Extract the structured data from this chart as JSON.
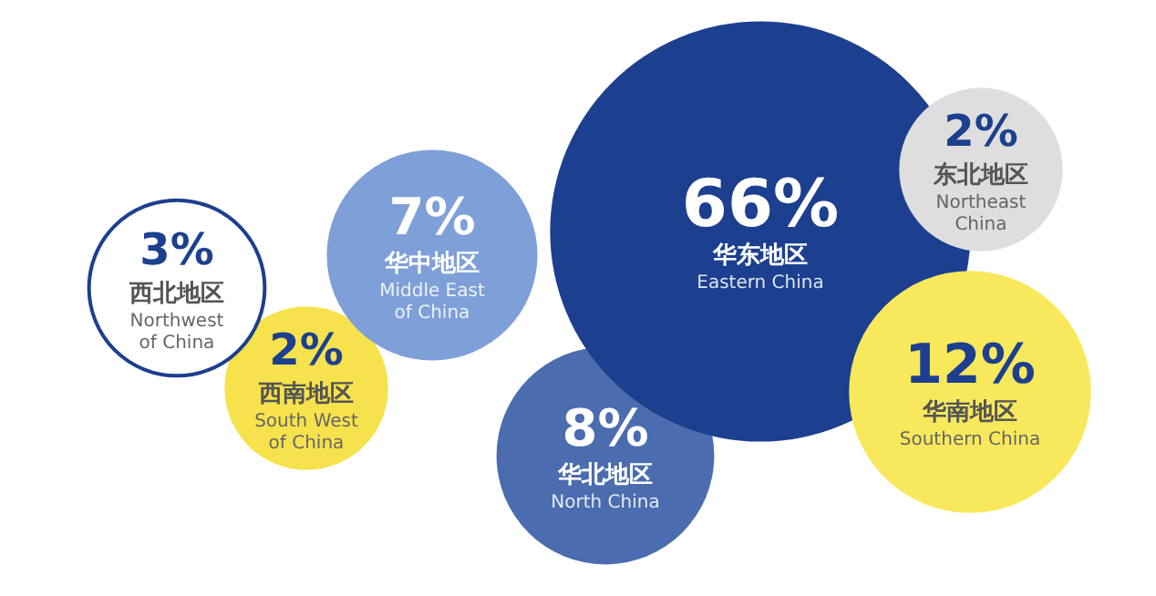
{
  "chart_data": {
    "type": "other",
    "categories": [
      "西南地区\nSouth West\nof China",
      "西北地区\nNorthwest\nof China",
      "华中地区\nMiddle East\nof China",
      "华北地区\nNorth China",
      "华东地区\nEastern China",
      "东北地区\nNortheast\nChina",
      "华南地区\nSouthern China"
    ],
    "values": [
      2,
      3,
      7,
      8,
      66,
      2,
      12
    ],
    "value_labels": [
      "2%",
      "3%",
      "7%",
      "8%",
      "66%",
      "2%",
      "12%"
    ],
    "colors": [
      "#f6e24c",
      "#ffffff",
      "#7f9fd8",
      "#4b6caf",
      "#1c3f8f",
      "#dedede",
      "#f8e95c"
    ]
  }
}
